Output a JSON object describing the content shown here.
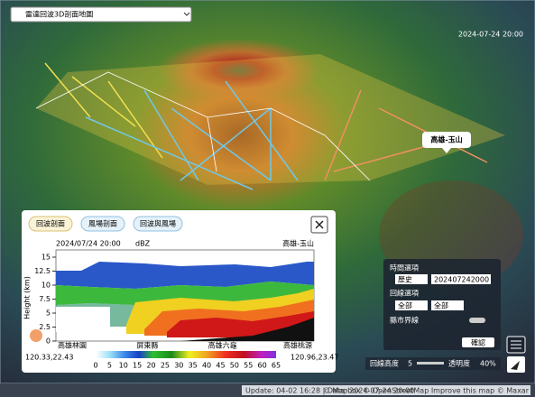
{
  "app": {
    "selector": "雷達回波3D剖面地圖",
    "timestamp": "2024-07-24 20:00",
    "map_label": "高雄-玉山",
    "logo": "mapbox",
    "footer": "Update: 04-02 16:28 | Data: 2024-07-24 20:00",
    "attribution": "© Mapbox © OpenStreetMap Improve this map © Maxar"
  },
  "profile": {
    "tabs": [
      "回波剖面",
      "風場剖面",
      "回波與風場"
    ],
    "time": "2024/07/24 20:00",
    "unit": "dBZ",
    "route": "高雄-玉山",
    "y_label": "Height (km)",
    "yticks": [
      0,
      2.5,
      5,
      7.5,
      10,
      12.5,
      15
    ],
    "stations": [
      "高雄林園",
      "屏東縣",
      "高雄六龜",
      "高雄桃源"
    ],
    "start": "120.33,22.43",
    "end": "120.96,23.47",
    "colorbar": [
      0,
      5,
      10,
      15,
      20,
      25,
      30,
      35,
      40,
      45,
      50,
      55,
      60,
      65
    ]
  },
  "controls": {
    "time_title": "時間選項",
    "time_mode": "歷史",
    "time_value": "202407242000",
    "route_title": "回線選項",
    "route_a": "全部",
    "route_b": "全部",
    "boundary": "縣市界線",
    "confirm": "確認",
    "height_label": "回線高度",
    "height_value": 5,
    "opacity_label": "透明度",
    "opacity_value": "40%"
  }
}
